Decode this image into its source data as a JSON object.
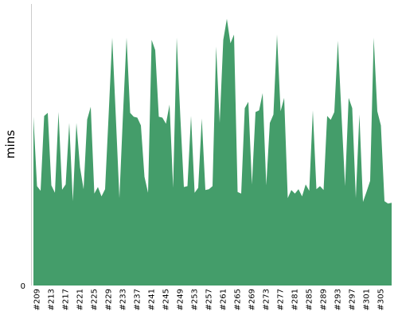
{
  "chart_data": {
    "type": "area",
    "title": "",
    "xlabel": "",
    "ylabel": "mins",
    "y_ticks": [
      "0"
    ],
    "ylim": [
      0,
      100
    ],
    "grid": false,
    "legend": "none",
    "color": "#449d6a",
    "x_start_label": 208,
    "x_tick_labels": [
      "#209",
      "#213",
      "#217",
      "#221",
      "#225",
      "#229",
      "#233",
      "#237",
      "#241",
      "#245",
      "#249",
      "#253",
      "#257",
      "#261",
      "#265",
      "#269",
      "#273",
      "#277",
      "#281",
      "#285",
      "#289",
      "#293",
      "#297",
      "#301",
      "#305"
    ],
    "series": [
      {
        "values": [
          60.8,
          35.8,
          34.1,
          61.1,
          62.2,
          36.1,
          33.4,
          62.5,
          34.5,
          36.4,
          58.6,
          30.4,
          58.6,
          42.6,
          34.7,
          59.8,
          64.4,
          33.1,
          35.5,
          32.1,
          34.7,
          61.6,
          89.3,
          60.8,
          31.5,
          61.6,
          89.3,
          62.2,
          60.8,
          60.5,
          57.7,
          39.2,
          33.4,
          88.5,
          84.8,
          60.8,
          60.5,
          58.3,
          65.2,
          35.2,
          89.3,
          61.1,
          35.5,
          35.8,
          61.1,
          33.4,
          35.2,
          60.2,
          34.4,
          34.7,
          35.8,
          86.1,
          58.6,
          88.5,
          96.1,
          87.3,
          90.4,
          33.7,
          33.1,
          63.9,
          66.2,
          36.4,
          62.5,
          63.1,
          69.3,
          36.1,
          58.6,
          61.6,
          90.4,
          62.8,
          67.6,
          31.5,
          34.4,
          33.1,
          34.7,
          32.1,
          36.4,
          34.1,
          63.1,
          34.7,
          35.8,
          34.4,
          61.1,
          59.7,
          62.5,
          88.2,
          61.6,
          35.8,
          67.6,
          63.9,
          31.5,
          61.6,
          30.1,
          33.8,
          37.7,
          89.3,
          62.8,
          57.7,
          30.4,
          29.5,
          29.8
        ]
      }
    ]
  }
}
